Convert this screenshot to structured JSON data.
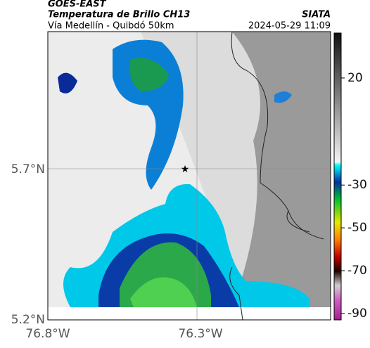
{
  "header": {
    "title": "GOES-EAST",
    "subtitle": "Temperatura de Brillo CH13",
    "route": "Vía Medellín - Quibdó 50km",
    "source": "SIATA",
    "timestamp": "2024-05-29 11:09"
  },
  "map": {
    "lat_labels": [
      "5.7°N",
      "5.2°N"
    ],
    "lon_labels": [
      "76.8°W",
      "76.3°W"
    ]
  },
  "colorbar": {
    "lim": [
      41,
      -93
    ],
    "ticks": [
      20,
      -30,
      -50,
      -70,
      -90
    ]
  }
}
